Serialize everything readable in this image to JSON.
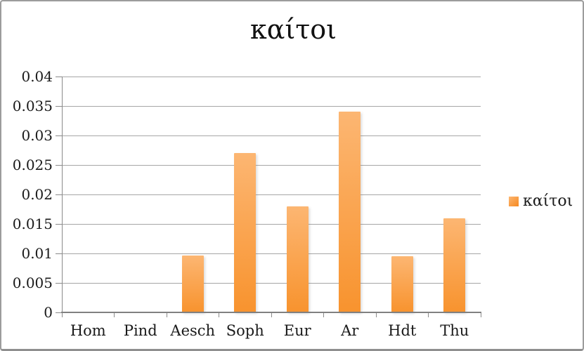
{
  "chart_data": {
    "type": "bar",
    "title": "καίτοι",
    "categories": [
      "Hom",
      "Pind",
      "Aesch",
      "Soph",
      "Eur",
      "Ar",
      "Hdt",
      "Thu"
    ],
    "series": [
      {
        "name": "καίτοι",
        "values": [
          0,
          0,
          0.0097,
          0.027,
          0.018,
          0.034,
          0.0095,
          0.016
        ]
      }
    ],
    "xlabel": "",
    "ylabel": "",
    "ylim": [
      0,
      0.04
    ],
    "ytick_step": 0.005,
    "yticks": [
      0,
      0.005,
      0.01,
      0.015,
      0.02,
      0.025,
      0.03,
      0.035,
      0.04
    ],
    "ytick_labels": [
      "0",
      "0.005",
      "0.01",
      "0.015",
      "0.02",
      "0.025",
      "0.03",
      "0.035",
      "0.04"
    ],
    "grid": true,
    "legend_position": "right",
    "colors": {
      "bar_gradient_top": "#fcb672",
      "bar_gradient_bottom": "#f8932e",
      "gridline": "#a6a6a6",
      "axis": "#808080",
      "text": "#1a1a1a",
      "frame_border": "#9c9c9c",
      "background": "#ffffff"
    }
  },
  "legend": {
    "swatch_icon": "orange-square",
    "label": "καίτοι"
  }
}
